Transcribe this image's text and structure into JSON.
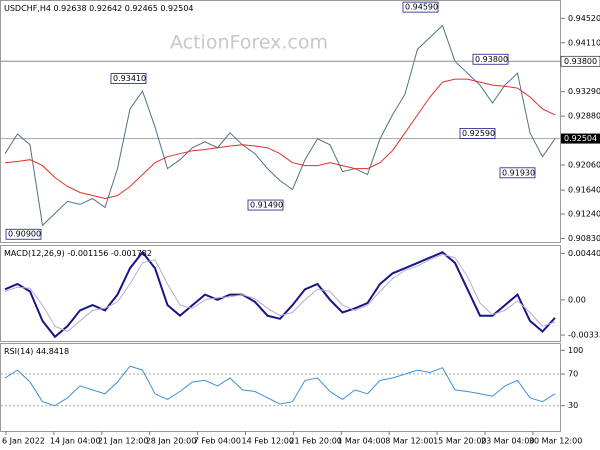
{
  "chart_data": [
    {
      "type": "line",
      "title": "USDCHF,H4",
      "ohlc": [
        0.92638,
        0.92642,
        0.92465,
        0.92504
      ],
      "watermark": "ActionForex.com",
      "ylim": [
        0.9077,
        0.9481
      ],
      "yticks": [
        {
          "value": 0.9452,
          "label": "0.94520"
        },
        {
          "value": 0.9411,
          "label": "0.94110"
        },
        {
          "value": 0.938,
          "label": "0.93800"
        },
        {
          "value": 0.9329,
          "label": "0.93290"
        },
        {
          "value": 0.9288,
          "label": "0.92880"
        },
        {
          "value": 0.9206,
          "label": "0.92060"
        },
        {
          "value": 0.9164,
          "label": "0.91640"
        },
        {
          "value": 0.9124,
          "label": "0.91240"
        },
        {
          "value": 0.9083,
          "label": "0.90830"
        }
      ],
      "current_price": 0.92504,
      "annotations": [
        {
          "value": 0.9459,
          "label": "0.94590"
        },
        {
          "value": 0.938,
          "label": "0.93800"
        },
        {
          "value": 0.9341,
          "label": "0.93410"
        },
        {
          "value": 0.9259,
          "label": "0.92590"
        },
        {
          "value": 0.9149,
          "label": "0.91490"
        },
        {
          "value": 0.9193,
          "label": "0.91930"
        },
        {
          "value": 0.909,
          "label": "0.90900"
        }
      ],
      "series": [
        {
          "name": "price",
          "color": "#4f7288",
          "values": [
            0.9225,
            0.9258,
            0.924,
            0.9105,
            0.9125,
            0.9145,
            0.914,
            0.915,
            0.9135,
            0.92,
            0.93,
            0.933,
            0.927,
            0.92,
            0.9215,
            0.9235,
            0.9245,
            0.9235,
            0.926,
            0.924,
            0.9225,
            0.92,
            0.918,
            0.9165,
            0.9215,
            0.925,
            0.924,
            0.9195,
            0.92,
            0.919,
            0.925,
            0.929,
            0.9325,
            0.94,
            0.942,
            0.944,
            0.938,
            0.936,
            0.934,
            0.931,
            0.934,
            0.936,
            0.926,
            0.922,
            0.925
          ]
        },
        {
          "name": "ma",
          "color": "#e0302a",
          "values": [
            0.921,
            0.9212,
            0.9215,
            0.9205,
            0.9185,
            0.917,
            0.916,
            0.9155,
            0.915,
            0.9155,
            0.917,
            0.919,
            0.921,
            0.922,
            0.9225,
            0.923,
            0.9232,
            0.9235,
            0.9238,
            0.924,
            0.9238,
            0.9235,
            0.9225,
            0.921,
            0.9205,
            0.9205,
            0.921,
            0.9205,
            0.92,
            0.92,
            0.921,
            0.923,
            0.926,
            0.929,
            0.932,
            0.9345,
            0.935,
            0.935,
            0.9345,
            0.934,
            0.9338,
            0.9335,
            0.932,
            0.93,
            0.929
          ]
        }
      ]
    },
    {
      "type": "line",
      "title": "MACD(12,26,9)",
      "readings": [
        -0.001156,
        -0.001782
      ],
      "ylim": [
        -0.0039,
        0.0051
      ],
      "yticks": [
        0.004403,
        {
          "value": 0,
          "label": "0.00"
        },
        -0.003338
      ],
      "series": [
        {
          "name": "macd",
          "color": "#16168a",
          "values": [
            0.001,
            0.0015,
            0.0008,
            -0.002,
            -0.0035,
            -0.0025,
            -0.001,
            -0.0005,
            -0.001,
            0.0005,
            0.003,
            0.0045,
            0.003,
            -0.0005,
            -0.0015,
            -0.0005,
            0.0005,
            0,
            0.0005,
            0.0005,
            -0.0002,
            -0.0015,
            -0.0018,
            -0.0005,
            0.001,
            0.0015,
            0,
            -0.0012,
            -0.0008,
            -0.0003,
            0.0015,
            0.0025,
            0.003,
            0.0035,
            0.004,
            0.0045,
            0.0035,
            0.001,
            -0.0015,
            -0.0015,
            -0.0005,
            0.0005,
            -0.002,
            -0.003,
            -0.0017
          ]
        },
        {
          "name": "signal",
          "color": "#b4aecb",
          "values": [
            0.0008,
            0.0012,
            0.0011,
            -0.0005,
            -0.0025,
            -0.003,
            -0.002,
            -0.001,
            -0.0008,
            -0.0002,
            0.0015,
            0.0035,
            0.0038,
            0.0015,
            -0.0005,
            -0.0008,
            0,
            0.0002,
            0.0003,
            0.0005,
            0.0001,
            -0.0008,
            -0.0015,
            -0.0012,
            0,
            0.001,
            0.0008,
            -0.0005,
            -0.001,
            -0.0005,
            0.0008,
            0.002,
            0.0028,
            0.0032,
            0.0038,
            0.0043,
            0.004,
            0.0022,
            -0.0003,
            -0.0014,
            -0.001,
            -0.0001,
            -0.0012,
            -0.0025,
            -0.0021
          ]
        }
      ]
    },
    {
      "type": "line",
      "title": "RSI(14)",
      "readings": [
        44.8418
      ],
      "ylim": [
        -2,
        108
      ],
      "yticks": [
        100,
        70,
        30
      ],
      "levels": [
        70,
        30
      ],
      "xlabels": [
        "6 Jan 2022",
        "14 Jan 04:00",
        "21 Jan 12:00",
        "28 Jan 20:00",
        "7 Feb 04:00",
        "14 Feb 12:00",
        "21 Feb 20:00",
        "1 Mar 04:00",
        "8 Mar 12:00",
        "15 Mar 20:00",
        "23 Mar 04:00",
        "30 Mar 12:00"
      ],
      "series": [
        {
          "name": "rsi",
          "color": "#3f8fd8",
          "values": [
            65,
            75,
            60,
            35,
            30,
            40,
            55,
            50,
            45,
            60,
            80,
            75,
            45,
            38,
            48,
            60,
            62,
            55,
            65,
            50,
            48,
            40,
            32,
            35,
            62,
            65,
            48,
            38,
            50,
            45,
            62,
            65,
            70,
            75,
            72,
            78,
            50,
            48,
            45,
            42,
            55,
            62,
            40,
            35,
            45
          ]
        }
      ]
    }
  ]
}
